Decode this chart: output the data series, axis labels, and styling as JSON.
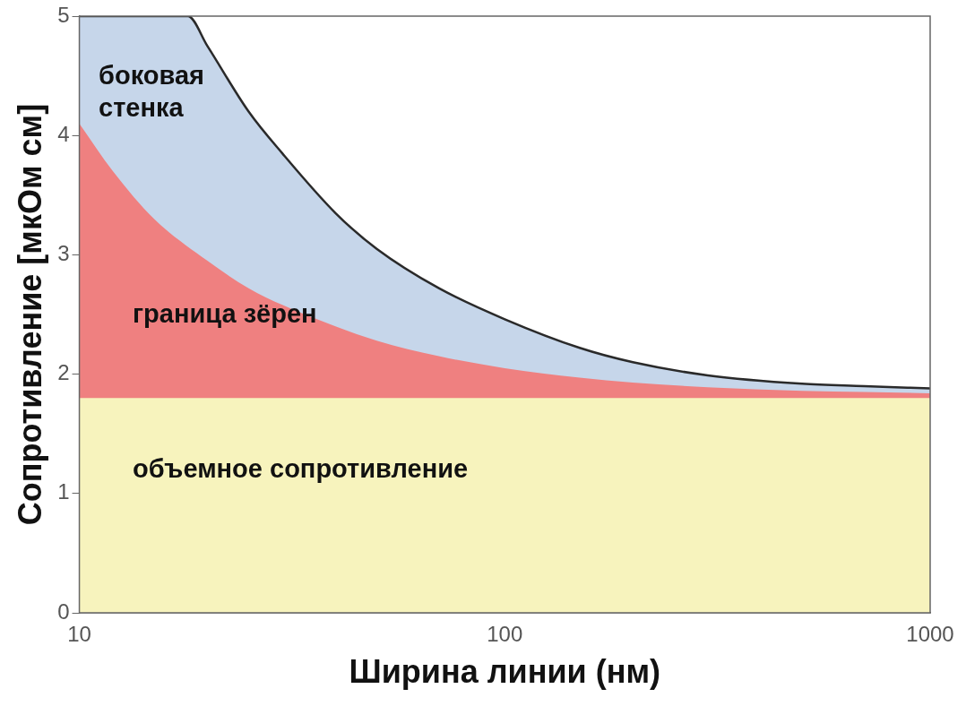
{
  "chart_data": {
    "type": "area",
    "xlabel": "Ширина линии (нм)",
    "ylabel": "Сопротивление [мкОм см]",
    "log": "x",
    "xlim": [
      10,
      1000
    ],
    "xticks": [
      10,
      100,
      1000
    ],
    "ylim": [
      0,
      5
    ],
    "yticks": [
      0,
      1,
      2,
      3,
      4,
      5
    ],
    "grid": false,
    "legend": false,
    "series": [
      {
        "name": "объемное сопротивление",
        "color": "#f7f3bd",
        "x": [
          10,
          1000
        ],
        "values": [
          1.8,
          1.8
        ]
      },
      {
        "name": "граница зёрен",
        "color": "#ef8080",
        "x": [
          10,
          12,
          15,
          20,
          25,
          30,
          40,
          50,
          70,
          100,
          150,
          200,
          300,
          500,
          700,
          1000
        ],
        "values": [
          4.1,
          3.7,
          3.3,
          2.95,
          2.72,
          2.58,
          2.4,
          2.28,
          2.15,
          2.05,
          1.97,
          1.93,
          1.89,
          1.86,
          1.85,
          1.84
        ]
      },
      {
        "name": "боковая стенка",
        "color": "#c6d6ea",
        "x": [
          10,
          18,
          20,
          25,
          30,
          40,
          50,
          70,
          100,
          150,
          200,
          300,
          500,
          700,
          1000
        ],
        "values": [
          5,
          5,
          4.75,
          4.2,
          3.85,
          3.35,
          3.05,
          2.72,
          2.46,
          2.22,
          2.1,
          1.99,
          1.92,
          1.9,
          1.88
        ]
      }
    ]
  }
}
